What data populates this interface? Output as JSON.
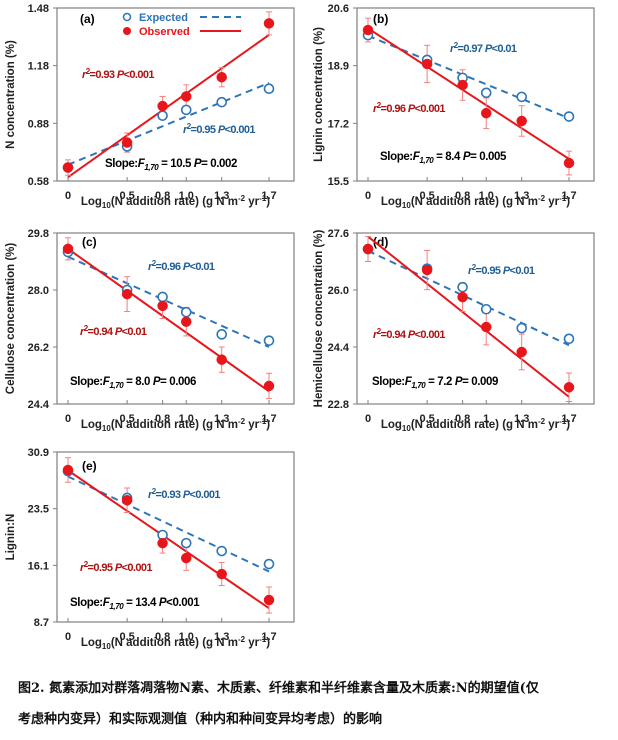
{
  "colors": {
    "expected": "#2E75B6",
    "observed": "#E8161B",
    "errorbar": "#F08080",
    "observed_stat": "#B01010",
    "expected_stat": "#1F5F96",
    "frame": "#808080"
  },
  "legend": {
    "expected_label": "Expected",
    "observed_label": "Observed"
  },
  "caption": {
    "line1": "图2.   氮素添加对群落凋落物N素、木质素、纤维素和半纤维素含量及木质素:N的期望值(仅",
    "line2": "考虑种内变异）和实际观测值（种内和种间变异均考虑）的影响"
  },
  "chart_data": [
    {
      "panel": "(a)",
      "type": "scatter",
      "ylabel": "N concentration (%)",
      "xlabel": "Log10(N addition rate) (g N m-2 yr-1)",
      "xlabel_parts": {
        "pre": "Log",
        "sub": "10",
        "mid": "(N addition rate) (g N m",
        "sup1": "-2",
        "mid2": " yr",
        "sup2": "-1",
        "post": ")"
      },
      "x": [
        0,
        0.5,
        0.8,
        1.0,
        1.3,
        1.7
      ],
      "xtick_labels": [
        "0",
        "0.5",
        "0.8",
        "1.0",
        "1.3",
        "1.7"
      ],
      "ylim": [
        0.58,
        1.48
      ],
      "yticks": [
        0.58,
        0.88,
        1.18,
        1.48
      ],
      "ytick_labels": [
        "0.58",
        "0.88",
        "1.18",
        "1.48"
      ],
      "legend": "top-center",
      "series": [
        {
          "name": "Expected",
          "values": [
            0.65,
            0.76,
            0.92,
            0.95,
            0.99,
            1.06
          ],
          "fit": [
            0.665,
            1.09
          ],
          "stat_r2": "0.95",
          "stat_p": "P<0.001"
        },
        {
          "name": "Observed",
          "values": [
            0.65,
            0.78,
            0.97,
            1.02,
            1.12,
            1.4
          ],
          "errors": [
            0.04,
            0.05,
            0.05,
            0.06,
            0.05,
            0.06
          ],
          "fit": [
            0.6,
            1.34
          ],
          "stat_r2": "0.93",
          "stat_p": "P<0.001"
        }
      ],
      "slope_text": {
        "f": "10.5",
        "p": "P= 0.002"
      }
    },
    {
      "panel": "(b)",
      "type": "scatter",
      "ylabel": "Lignin concentration (%)",
      "xlabel": "Log10(N addition rate) (g N m-2 yr-1)",
      "xlabel_parts": {
        "pre": "Log",
        "sub": "10",
        "mid": "(N addition rate) (g N m",
        "sup1": "-2",
        "mid2": " yr",
        "sup2": "-1",
        "post": ")"
      },
      "x": [
        0,
        0.5,
        0.8,
        1.0,
        1.3,
        1.7
      ],
      "xtick_labels": [
        "0",
        "0.5",
        "0.8",
        "1.0",
        "1.3",
        "1.7"
      ],
      "ylim": [
        15.5,
        20.6
      ],
      "yticks": [
        15.5,
        17.2,
        18.9,
        20.6
      ],
      "ytick_labels": [
        "15.5",
        "17.2",
        "18.9",
        "20.6"
      ],
      "series": [
        {
          "name": "Expected",
          "values": [
            19.8,
            19.07,
            18.54,
            18.1,
            17.98,
            17.4
          ],
          "fit": [
            19.78,
            17.35
          ],
          "stat_r2": "0.97",
          "stat_p": "P<0.01"
        },
        {
          "name": "Observed",
          "values": [
            19.95,
            18.95,
            18.33,
            17.5,
            17.27,
            16.03
          ],
          "errors": [
            0.35,
            0.55,
            0.45,
            0.45,
            0.45,
            0.35
          ],
          "fit": [
            20.0,
            16.15
          ],
          "stat_r2": "0.96",
          "stat_p": "P<0.001"
        }
      ],
      "slope_text": {
        "f": "8.4",
        "p": "P= 0.005"
      }
    },
    {
      "panel": "(c)",
      "type": "scatter",
      "ylabel": "Cellulose concentration (%)",
      "xlabel": "Log10(N addition rate) (g N m-2 yr-1)",
      "xlabel_parts": {
        "pre": "Log",
        "sub": "10",
        "mid": "(N addition rate) (g N m",
        "sup1": "-2",
        "mid2": " yr",
        "sup2": "-1",
        "post": ")"
      },
      "x": [
        0,
        0.5,
        0.8,
        1.0,
        1.3,
        1.7
      ],
      "xtick_labels": [
        "0",
        "0.5",
        "0.8",
        "1.0",
        "1.3",
        "1.7"
      ],
      "ylim": [
        24.4,
        29.8
      ],
      "yticks": [
        24.4,
        26.2,
        28.0,
        29.8
      ],
      "ytick_labels": [
        "24.4",
        "26.2",
        "28.0",
        "29.8"
      ],
      "series": [
        {
          "name": "Expected",
          "values": [
            29.2,
            28.0,
            27.78,
            27.3,
            26.6,
            26.4
          ],
          "fit": [
            29.05,
            26.2
          ],
          "stat_r2": "0.96",
          "stat_p": "P<0.01"
        },
        {
          "name": "Observed",
          "values": [
            29.3,
            27.87,
            27.5,
            27.0,
            25.8,
            24.97
          ],
          "errors": [
            0.35,
            0.55,
            0.4,
            0.45,
            0.4,
            0.4
          ],
          "fit": [
            29.3,
            24.8
          ],
          "stat_r2": "0.94",
          "stat_p": "P<0.01"
        }
      ],
      "slope_text": {
        "f": "8.0",
        "p": "P= 0.006"
      }
    },
    {
      "panel": "(d)",
      "type": "scatter",
      "ylabel": "Hemicellulose concentration (%)",
      "xlabel": "Log10(N addition rate) (g N m-2 yr-1)",
      "xlabel_parts": {
        "pre": "Log",
        "sub": "10",
        "mid": "(N addition rate) (g N m",
        "sup1": "-2",
        "mid2": " yr",
        "sup2": "-1",
        "post": ")"
      },
      "x": [
        0,
        0.5,
        0.8,
        1.0,
        1.3,
        1.7
      ],
      "xtick_labels": [
        "0",
        "0.5",
        "0.8",
        "1",
        "1.3",
        "1.7"
      ],
      "ylim": [
        22.8,
        27.6
      ],
      "yticks": [
        22.8,
        24.4,
        26.0,
        27.6
      ],
      "ytick_labels": [
        "22.8",
        "24.4",
        "26.0",
        "27.6"
      ],
      "series": [
        {
          "name": "Expected",
          "values": [
            27.15,
            26.6,
            26.08,
            25.46,
            24.93,
            24.63
          ],
          "fit": [
            27.1,
            24.45
          ],
          "stat_r2": "0.95",
          "stat_p": "P<0.01"
        },
        {
          "name": "Observed",
          "values": [
            27.15,
            26.56,
            25.8,
            24.96,
            24.26,
            23.27
          ],
          "errors": [
            0.35,
            0.55,
            0.4,
            0.5,
            0.5,
            0.4
          ],
          "fit": [
            27.5,
            23.0
          ],
          "stat_r2": "0.94",
          "stat_p": "P<0.001"
        }
      ],
      "slope_text": {
        "f": "7.2",
        "p": "P= 0.009"
      }
    },
    {
      "panel": "(e)",
      "type": "scatter",
      "ylabel": "Lignin:N",
      "xlabel": "Log10(N addition rate) (g N m-2 yr-1)",
      "xlabel_parts": {
        "pre": "Log",
        "sub": "10",
        "mid": "(N addition rate) (g N m",
        "sup1": "-2",
        "mid2": " yr",
        "sup2": "-1",
        "post": ")"
      },
      "x": [
        0,
        0.5,
        0.8,
        1.0,
        1.3,
        1.7
      ],
      "xtick_labels": [
        "0",
        "0.5",
        "0.8",
        "1.0",
        "1.3",
        "1.7"
      ],
      "ylim": [
        8.7,
        30.9
      ],
      "yticks": [
        8.7,
        16.1,
        23.5,
        30.9
      ],
      "ytick_labels": [
        "8.7",
        "16.1",
        "23.5",
        "30.9"
      ],
      "series": [
        {
          "name": "Expected",
          "values": [
            28.4,
            24.9,
            20.06,
            19.0,
            17.97,
            16.27
          ],
          "fit": [
            27.7,
            15.3
          ],
          "stat_r2": "0.93",
          "stat_p": "P<0.001"
        },
        {
          "name": "Observed",
          "values": [
            28.55,
            24.6,
            19.0,
            17.05,
            14.96,
            11.57
          ],
          "errors": [
            1.6,
            1.6,
            1.3,
            1.6,
            1.5,
            1.7
          ],
          "fit": [
            28.5,
            10.5
          ],
          "stat_r2": "0.95",
          "stat_p": "P<0.001"
        }
      ],
      "slope_text": {
        "f": "13.4",
        "p": "P<0.001"
      }
    }
  ]
}
